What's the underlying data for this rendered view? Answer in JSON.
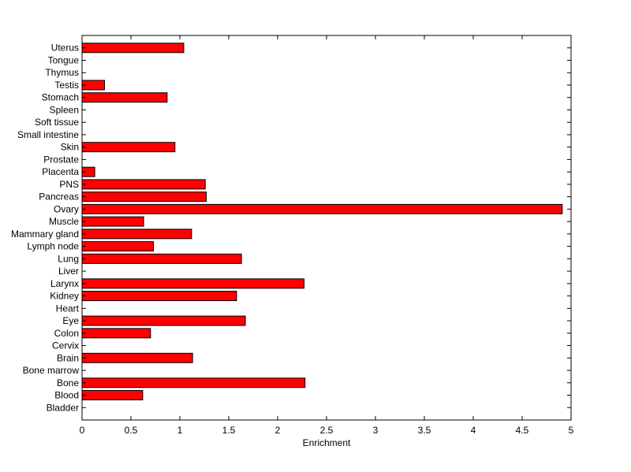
{
  "chart_data": {
    "type": "bar",
    "orientation": "horizontal",
    "title": "",
    "xlabel": "Enrichment",
    "ylabel": "",
    "xlim": [
      0,
      5
    ],
    "xticks": [
      "0",
      "0.5",
      "1",
      "1.5",
      "2",
      "2.5",
      "3",
      "3.5",
      "4",
      "4.5",
      "5"
    ],
    "grid": false,
    "bar_color": "#ff0000",
    "categories": [
      "Bladder",
      "Blood",
      "Bone",
      "Bone marrow",
      "Brain",
      "Cervix",
      "Colon",
      "Eye",
      "Heart",
      "Kidney",
      "Larynx",
      "Liver",
      "Lung",
      "Lymph node",
      "Mammary gland",
      "Muscle",
      "Ovary",
      "Pancreas",
      "PNS",
      "Placenta",
      "Prostate",
      "Skin",
      "Small intestine",
      "Soft tissue",
      "Spleen",
      "Stomach",
      "Testis",
      "Thymus",
      "Tongue",
      "Uterus"
    ],
    "values": [
      0,
      0.62,
      2.28,
      0,
      1.13,
      0,
      0.7,
      1.67,
      0,
      1.58,
      2.27,
      0,
      1.63,
      0.73,
      1.12,
      0.63,
      4.91,
      1.27,
      1.26,
      0.13,
      0,
      0.95,
      0,
      0,
      0,
      0.87,
      0.23,
      0,
      0,
      1.04
    ]
  }
}
